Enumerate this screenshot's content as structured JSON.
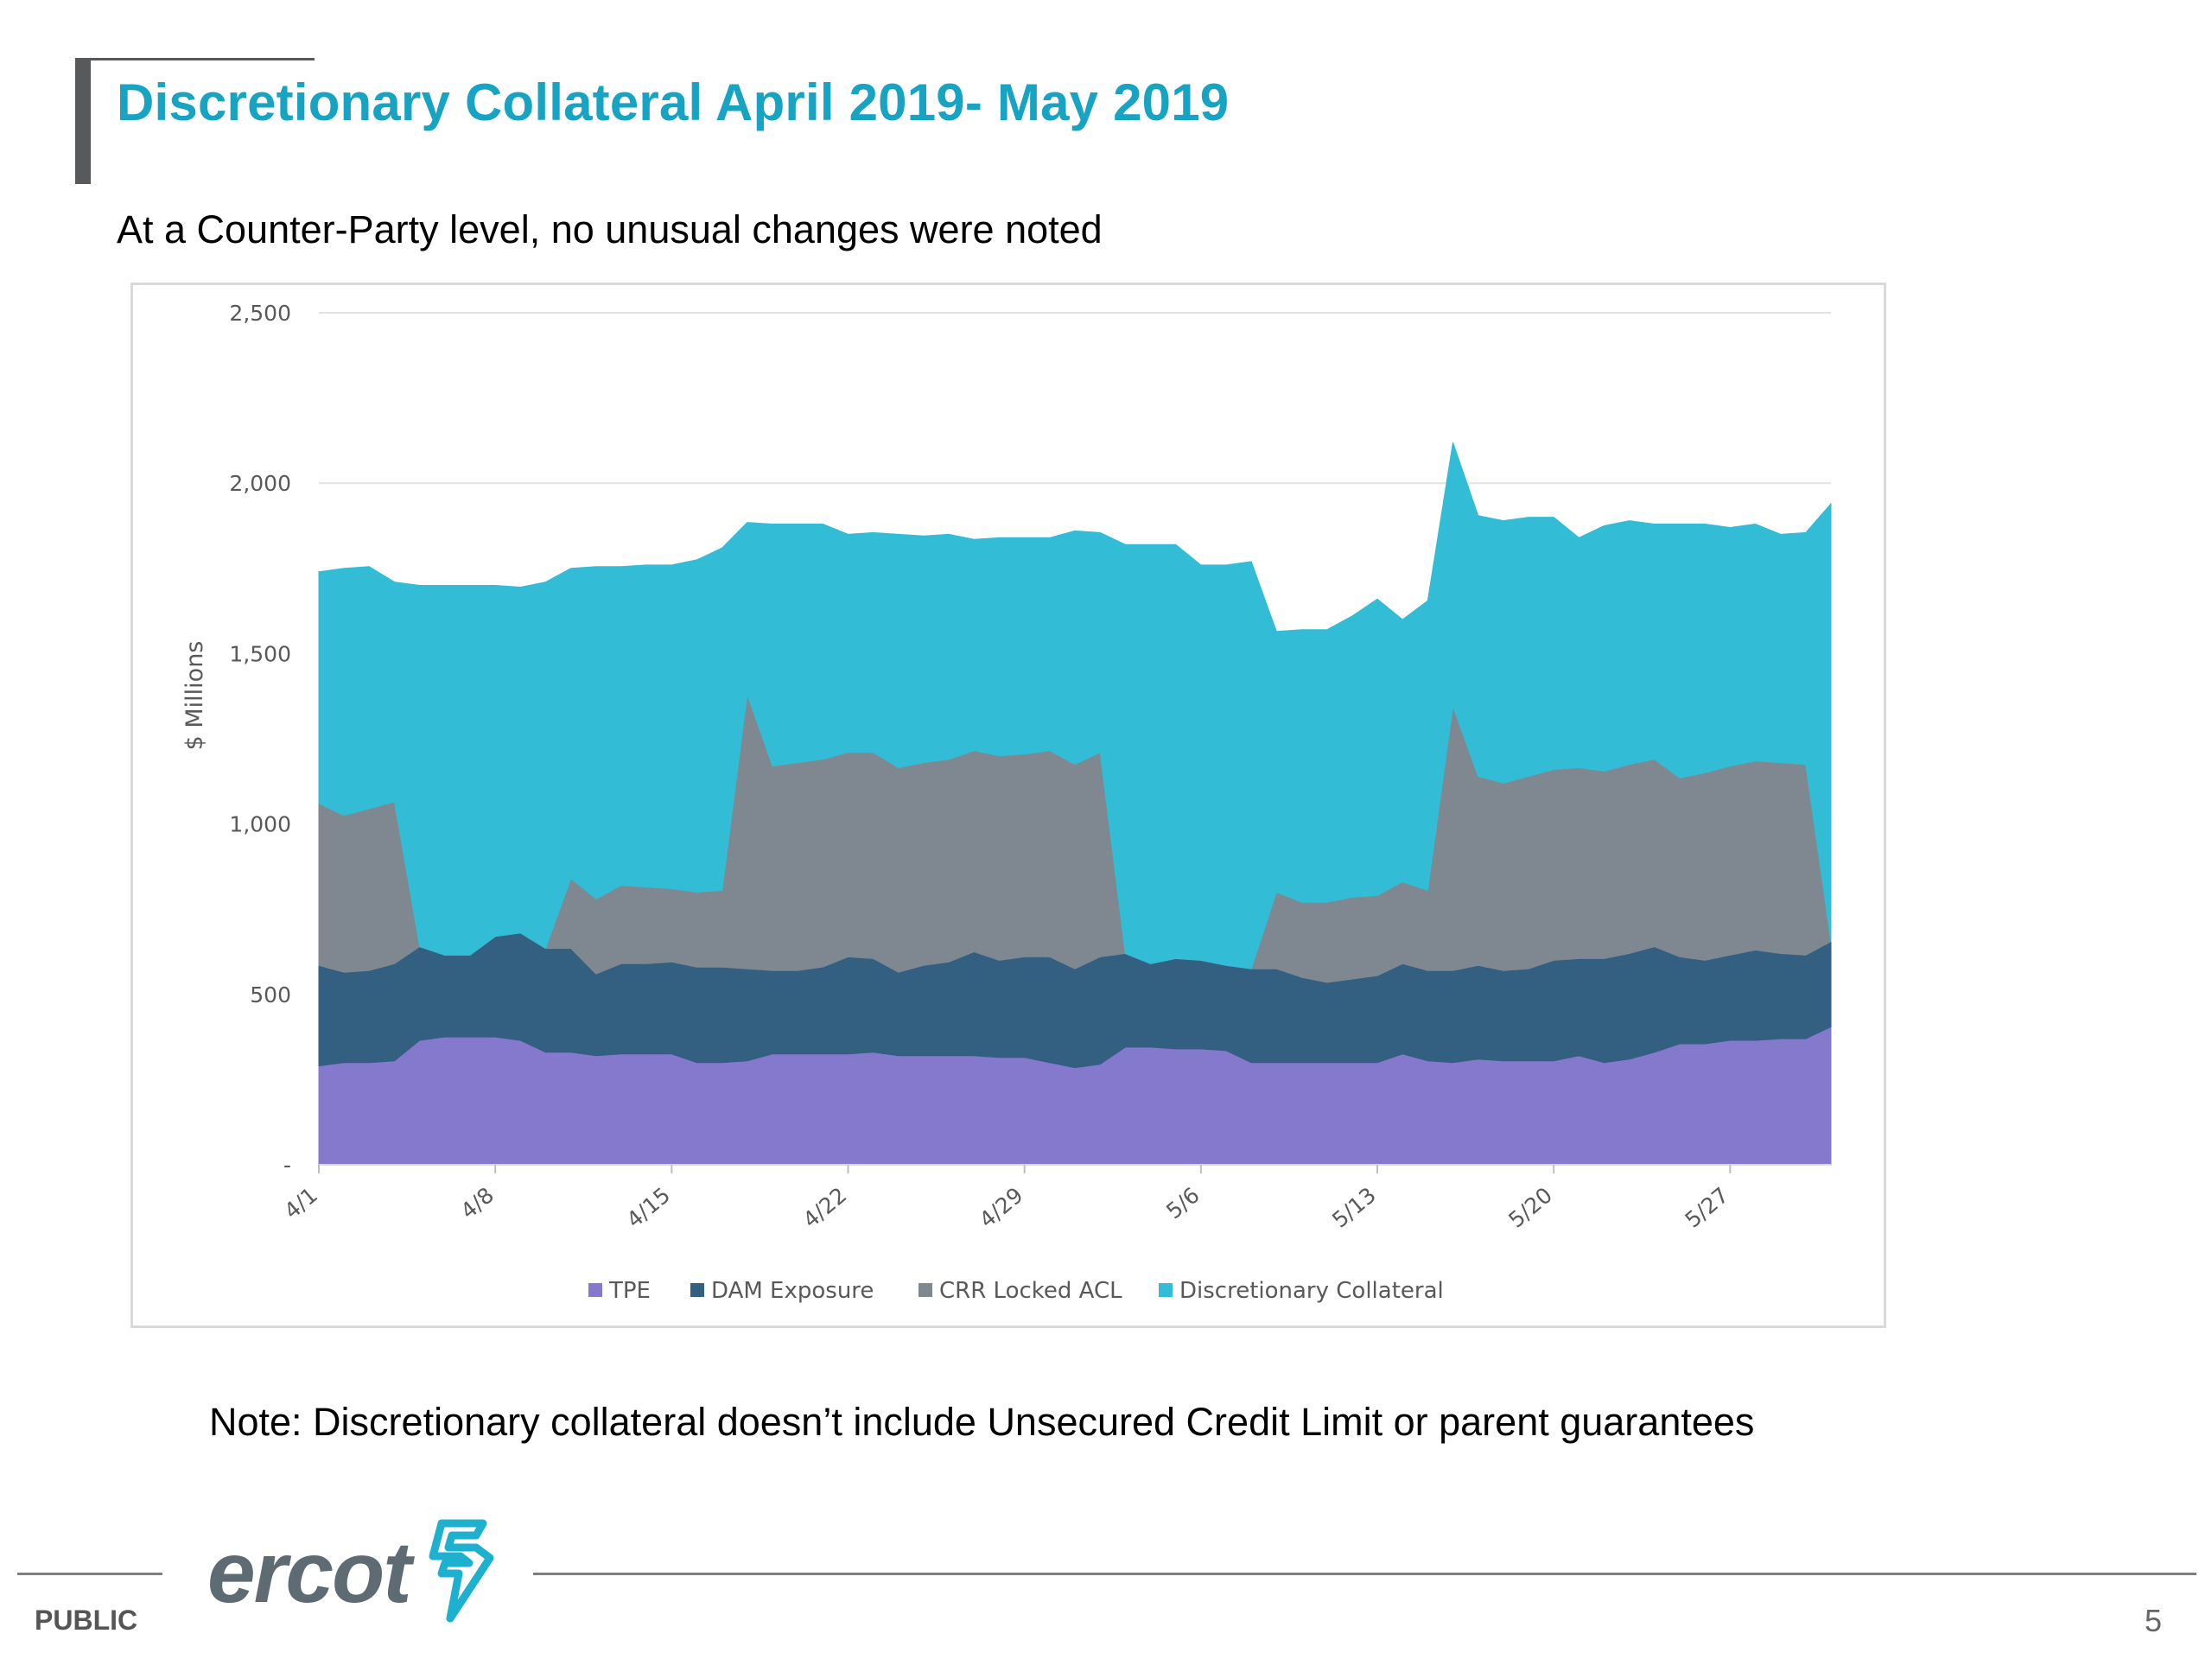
{
  "slide": {
    "title": "Discretionary Collateral April 2019- May 2019",
    "subtitle": "At a Counter-Party level, no unusual changes were noted",
    "note": "Note: Discretionary collateral doesn’t include Unsecured Credit Limit or parent guarantees",
    "footer_label": "PUBLIC",
    "page_number": "5",
    "logo_text": "ercot"
  },
  "colors": {
    "title": "#17a3c2",
    "accent_bar": "#58595b",
    "logo": "#5f6b73",
    "logo_mark": "#1eb1cf"
  },
  "chart_data": {
    "type": "area",
    "stacked": true,
    "ylabel": "$ Millions",
    "ylim": [
      0,
      2500
    ],
    "yticks": [
      0,
      500,
      1000,
      1500,
      2000,
      2500
    ],
    "ytick_labels": [
      "-",
      "500",
      "1,000",
      "1,500",
      "2,000",
      "2,500"
    ],
    "xticks": [
      {
        "label": "4/1",
        "day": 0
      },
      {
        "label": "4/8",
        "day": 7
      },
      {
        "label": "4/15",
        "day": 14
      },
      {
        "label": "4/22",
        "day": 21
      },
      {
        "label": "4/29",
        "day": 28
      },
      {
        "label": "5/6",
        "day": 35
      },
      {
        "label": "5/13",
        "day": 42
      },
      {
        "label": "5/20",
        "day": 49
      },
      {
        "label": "5/27",
        "day": 56
      }
    ],
    "x_days": [
      0,
      1,
      2,
      3,
      4,
      5,
      6,
      7,
      8,
      9,
      10,
      11,
      12,
      13,
      14,
      15,
      16,
      17,
      18,
      19,
      20,
      21,
      22,
      23,
      24,
      25,
      26,
      27,
      28,
      29,
      30,
      31,
      32,
      33,
      34,
      35,
      36,
      37,
      38,
      39,
      40,
      41,
      42,
      43,
      44,
      45,
      46,
      47,
      48,
      49,
      50,
      51,
      52,
      53,
      54,
      55,
      56,
      57,
      58,
      59,
      60
    ],
    "grid": true,
    "legend_position": "bottom",
    "series": [
      {
        "name": "TPE",
        "color": "#8479cc",
        "values": [
          290,
          300,
          300,
          305,
          365,
          375,
          375,
          375,
          365,
          330,
          330,
          320,
          325,
          325,
          325,
          300,
          300,
          305,
          325,
          325,
          325,
          325,
          330,
          320,
          320,
          320,
          320,
          315,
          315,
          300,
          285,
          295,
          345,
          345,
          340,
          340,
          335,
          300,
          300,
          300,
          300,
          300,
          300,
          325,
          305,
          300,
          310,
          305,
          305,
          305,
          320,
          300,
          310,
          330,
          355,
          355,
          365,
          365,
          370,
          370,
          405
        ]
      },
      {
        "name": "DAM Exposure",
        "color": "#335f80",
        "values": [
          295,
          265,
          270,
          285,
          275,
          240,
          240,
          295,
          315,
          305,
          305,
          240,
          265,
          265,
          270,
          280,
          280,
          270,
          245,
          245,
          255,
          285,
          275,
          245,
          265,
          275,
          305,
          285,
          295,
          310,
          290,
          315,
          275,
          245,
          265,
          260,
          250,
          275,
          275,
          250,
          235,
          245,
          255,
          265,
          265,
          270,
          275,
          265,
          270,
          295,
          285,
          305,
          310,
          310,
          255,
          245,
          250,
          265,
          250,
          245,
          250
        ]
      },
      {
        "name": "CRR Locked ACL",
        "color": "#7f8890",
        "values": [
          475,
          460,
          475,
          475,
          0,
          0,
          0,
          0,
          0,
          0,
          205,
          220,
          230,
          225,
          215,
          220,
          225,
          805,
          600,
          610,
          610,
          600,
          605,
          600,
          595,
          595,
          590,
          600,
          595,
          605,
          600,
          600,
          0,
          0,
          0,
          0,
          0,
          0,
          225,
          220,
          235,
          240,
          235,
          240,
          235,
          775,
          555,
          550,
          565,
          560,
          560,
          550,
          555,
          550,
          525,
          550,
          555,
          555,
          560,
          560,
          0
        ]
      },
      {
        "name": "Discretionary Collateral",
        "color": "#33bcd5",
        "values": [
          680,
          725,
          710,
          645,
          1060,
          1085,
          1085,
          1030,
          1015,
          1075,
          910,
          975,
          935,
          945,
          950,
          975,
          1005,
          505,
          710,
          700,
          690,
          640,
          645,
          685,
          665,
          660,
          620,
          640,
          635,
          625,
          685,
          645,
          1200,
          1230,
          1215,
          1160,
          1175,
          1195,
          765,
          800,
          800,
          825,
          870,
          770,
          850,
          775,
          765,
          770,
          760,
          740,
          675,
          720,
          715,
          690,
          745,
          730,
          700,
          695,
          670,
          680,
          1285
        ]
      }
    ]
  }
}
